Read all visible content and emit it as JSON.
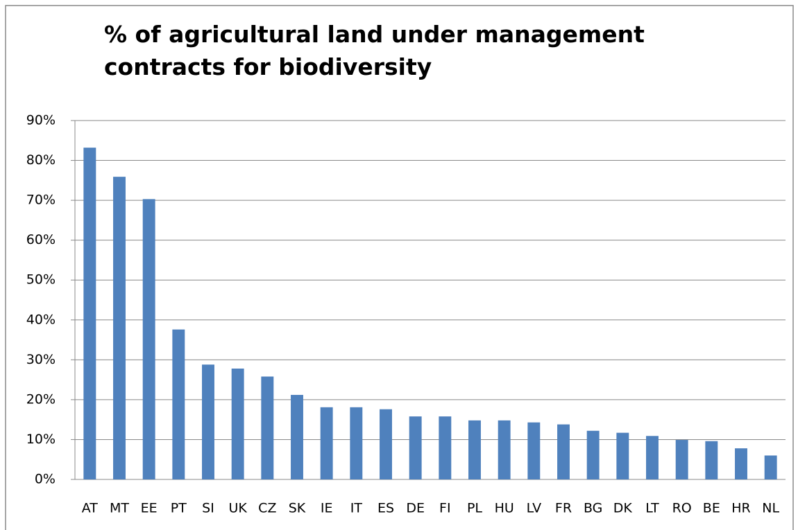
{
  "chart_data": {
    "type": "bar",
    "title": "% of agricultural land under management contracts for biodiversity",
    "categories": [
      "AT",
      "MT",
      "EE",
      "PT",
      "SI",
      "UK",
      "CZ",
      "SK",
      "IE",
      "IT",
      "ES",
      "DE",
      "FI",
      "PL",
      "HU",
      "LV",
      "FR",
      "BG",
      "DK",
      "LT",
      "RO",
      "BE",
      "HR",
      "NL"
    ],
    "values": [
      83.2,
      75.9,
      70.3,
      37.6,
      28.8,
      27.8,
      25.8,
      21.2,
      18.1,
      18.1,
      17.6,
      15.8,
      15.8,
      14.8,
      14.8,
      14.3,
      13.8,
      12.2,
      11.7,
      10.9,
      9.9,
      9.6,
      7.8,
      6.0
    ],
    "color": "#4f81bd",
    "ylim": [
      0,
      90
    ],
    "yticks": [
      {
        "value": 0,
        "label": "0%"
      },
      {
        "value": 10,
        "label": "10%"
      },
      {
        "value": 20,
        "label": "20%"
      },
      {
        "value": 30,
        "label": "30%"
      },
      {
        "value": 40,
        "label": "40%"
      },
      {
        "value": 50,
        "label": "50%"
      },
      {
        "value": 60,
        "label": "60%"
      },
      {
        "value": 70,
        "label": "70%"
      },
      {
        "value": 80,
        "label": "80%"
      },
      {
        "value": 90,
        "label": "90%"
      }
    ],
    "grid": true
  }
}
